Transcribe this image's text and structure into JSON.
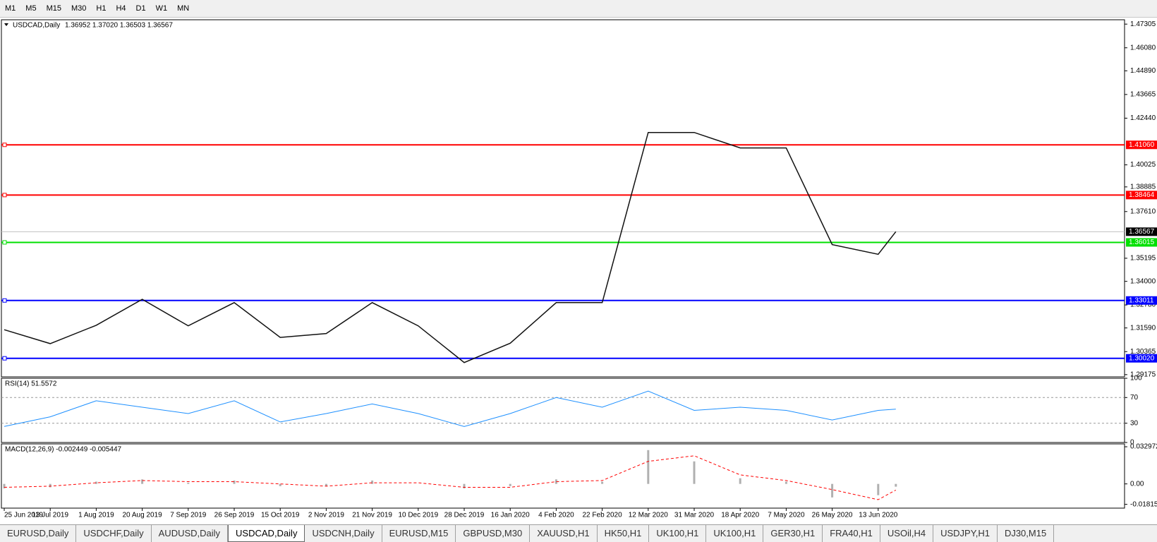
{
  "toolbar": {
    "timeframes": [
      "M1",
      "M5",
      "M15",
      "M30",
      "H1",
      "H4",
      "D1",
      "W1",
      "MN"
    ]
  },
  "chart_data": [
    {
      "type": "line",
      "title": "USDCAD,Daily",
      "quote": "1.36952 1.37020 1.36503 1.36567",
      "categories": [
        "25 Jun 2019",
        "13 Jul 2019",
        "1 Aug 2019",
        "20 Aug 2019",
        "7 Sep 2019",
        "26 Sep 2019",
        "15 Oct 2019",
        "2 Nov 2019",
        "21 Nov 2019",
        "10 Dec 2019",
        "28 Dec 2019",
        "16 Jan 2020",
        "4 Feb 2020",
        "22 Feb 2020",
        "12 Mar 2020",
        "31 Mar 2020",
        "18 Apr 2020",
        "7 May 2020",
        "26 May 2020",
        "13 Jun 2020",
        null
      ],
      "series": [
        {
          "name": "USDCAD",
          "color": "#111111",
          "values": [
            1.315,
            1.3078,
            1.3173,
            1.3307,
            1.317,
            1.329,
            1.311,
            1.313,
            1.329,
            1.317,
            1.298,
            1.308,
            1.329,
            1.329,
            1.417,
            1.417,
            1.409,
            1.409,
            1.359,
            1.354,
            1.36567
          ]
        }
      ],
      "ylim": [
        1.2906,
        1.4753
      ],
      "yticks": [
        1.47305,
        {
          "value": 1.4608,
          "label": "1.46080"
        },
        {
          "value": 1.4489,
          "label": "1.44890"
        },
        1.43665,
        {
          "value": 1.4244,
          "label": "1.42440"
        },
        1.40025,
        1.38885,
        {
          "value": 1.3761,
          "label": "1.37610"
        },
        1.35195,
        {
          "value": 1.34,
          "label": "1.34000"
        },
        {
          "value": 1.3278,
          "label": "1.32780"
        },
        {
          "value": 1.3159,
          "label": "1.31590"
        },
        1.30365,
        1.29175
      ],
      "levels": [
        {
          "value": {
            "value": 1.4106,
            "label": "1.41060"
          },
          "color": "#ff0000"
        },
        {
          "value": 1.38464,
          "color": "#ff0000"
        },
        {
          "value": 1.36015,
          "color": "#00e000"
        },
        {
          "value": 1.33011,
          "color": "#0000ff"
        },
        {
          "value": {
            "value": 1.3002,
            "label": "1.30020"
          },
          "color": "#0000ff"
        }
      ],
      "current_price": 1.36567
    },
    {
      "type": "line",
      "title": "RSI(14) 51.5572",
      "series": [
        {
          "name": "RSI",
          "color": "#1e90ff",
          "values": [
            25,
            40,
            65,
            55,
            45,
            65,
            32,
            45,
            60,
            45,
            25,
            45,
            70,
            55,
            80,
            50,
            55,
            50,
            35,
            50,
            52
          ]
        }
      ],
      "ylim": [
        0,
        100
      ],
      "yticks": [
        100,
        70,
        30,
        0
      ]
    },
    {
      "type": "macd",
      "title": "MACD(12,26,9) -0.002449 -0.005447",
      "series": [
        {
          "name": "MACD",
          "color": "#b0b0b0",
          "values": [
            -0.004,
            -0.003,
            0.002,
            0.004,
            0.001,
            0.003,
            -0.002,
            -0.002,
            0.003,
            0.0,
            -0.004,
            -0.002,
            0.004,
            0.002,
            0.03,
            0.02,
            0.005,
            0.002,
            -0.012,
            -0.01,
            -0.002449
          ]
        },
        {
          "name": "Signal",
          "color": "#ff0000",
          "values": [
            -0.003,
            -0.002,
            0.001,
            0.003,
            0.002,
            0.002,
            0.0,
            -0.002,
            0.001,
            0.001,
            -0.003,
            -0.003,
            0.002,
            0.003,
            0.02,
            0.025,
            0.008,
            0.003,
            -0.005,
            -0.014,
            -0.005447
          ]
        }
      ],
      "ylim": [
        -0.0215,
        0.0355
      ],
      "yticks": [
        0.032972,
        {
          "value": 0,
          "label": "0.00"
        },
        -0.018154
      ]
    }
  ],
  "tabs": {
    "items": [
      "EURUSD,Daily",
      "USDCHF,Daily",
      "AUDUSD,Daily",
      "USDCAD,Daily",
      "USDCNH,Daily",
      "EURUSD,M15",
      "GBPUSD,M30",
      "XAUUSD,H1",
      "HK50,H1",
      "UK100,H1",
      "UK100,H1",
      "GER30,H1",
      "FRA40,H1",
      "USOil,H4",
      "USDJPY,H1",
      "DJ30,M15"
    ],
    "active": 3
  }
}
